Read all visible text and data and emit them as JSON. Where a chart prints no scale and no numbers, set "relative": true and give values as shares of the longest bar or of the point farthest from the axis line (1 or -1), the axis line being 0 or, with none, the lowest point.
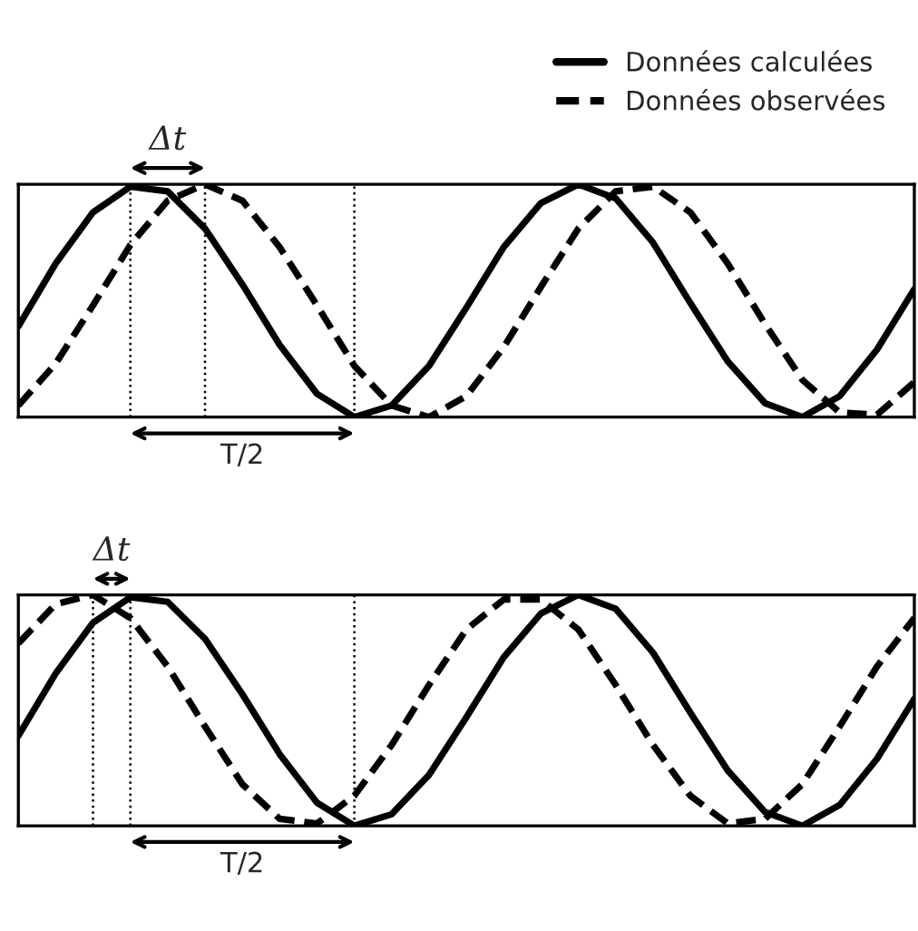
{
  "chart_data": [
    {
      "type": "line",
      "relative": true,
      "legend": "top right",
      "grid": "x",
      "categories": [
        null,
        null,
        null,
        null,
        null,
        null,
        null,
        null,
        null,
        null,
        null,
        null,
        null,
        null,
        null,
        null,
        null,
        null,
        null,
        null,
        null,
        null,
        null,
        null,
        null
      ],
      "series": [
        {
          "name": "Données calculées",
          "color": "#000000",
          "line_style": "solid",
          "values": [
            0.39,
            0.66,
            0.88,
            0.99,
            0.97,
            0.81,
            0.57,
            0.31,
            0.1,
            0.0,
            0.05,
            0.22,
            0.47,
            0.73,
            0.92,
            1.0,
            0.94,
            0.75,
            0.49,
            0.24,
            0.06,
            0.0,
            0.09,
            0.29,
            0.55
          ]
        },
        {
          "name": "Données observées",
          "color": "#000000",
          "line_style": "dashed",
          "values": [
            0.05,
            0.23,
            0.48,
            0.74,
            0.93,
            1.0,
            0.93,
            0.73,
            0.48,
            0.22,
            0.05,
            0.0,
            0.09,
            0.3,
            0.56,
            0.81,
            0.97,
            0.99,
            0.88,
            0.66,
            0.4,
            0.16,
            0.02,
            0.01,
            0.15
          ]
        }
      ],
      "annotations": [
        "Δt",
        "T/2"
      ]
    },
    {
      "type": "line",
      "relative": true,
      "grid": "x",
      "categories": [
        null,
        null,
        null,
        null,
        null,
        null,
        null,
        null,
        null,
        null,
        null,
        null,
        null,
        null,
        null,
        null,
        null,
        null,
        null,
        null,
        null,
        null,
        null,
        null,
        null
      ],
      "series": [
        {
          "color": "#000000",
          "line_style": "solid",
          "values": [
            0.39,
            0.66,
            0.88,
            0.99,
            0.97,
            0.81,
            0.57,
            0.31,
            0.1,
            0.0,
            0.05,
            0.22,
            0.47,
            0.73,
            0.92,
            1.0,
            0.94,
            0.75,
            0.49,
            0.24,
            0.06,
            0.0,
            0.09,
            0.29,
            0.55
          ]
        },
        {
          "color": "#000000",
          "line_style": "dashed",
          "values": [
            0.79,
            0.96,
            1.0,
            0.9,
            0.69,
            0.43,
            0.18,
            0.03,
            0.01,
            0.13,
            0.35,
            0.61,
            0.85,
            0.98,
            0.98,
            0.85,
            0.61,
            0.35,
            0.13,
            0.01,
            0.03,
            0.18,
            0.43,
            0.69,
            0.9
          ]
        }
      ],
      "annotations": [
        "Δt",
        "T/2"
      ]
    }
  ]
}
